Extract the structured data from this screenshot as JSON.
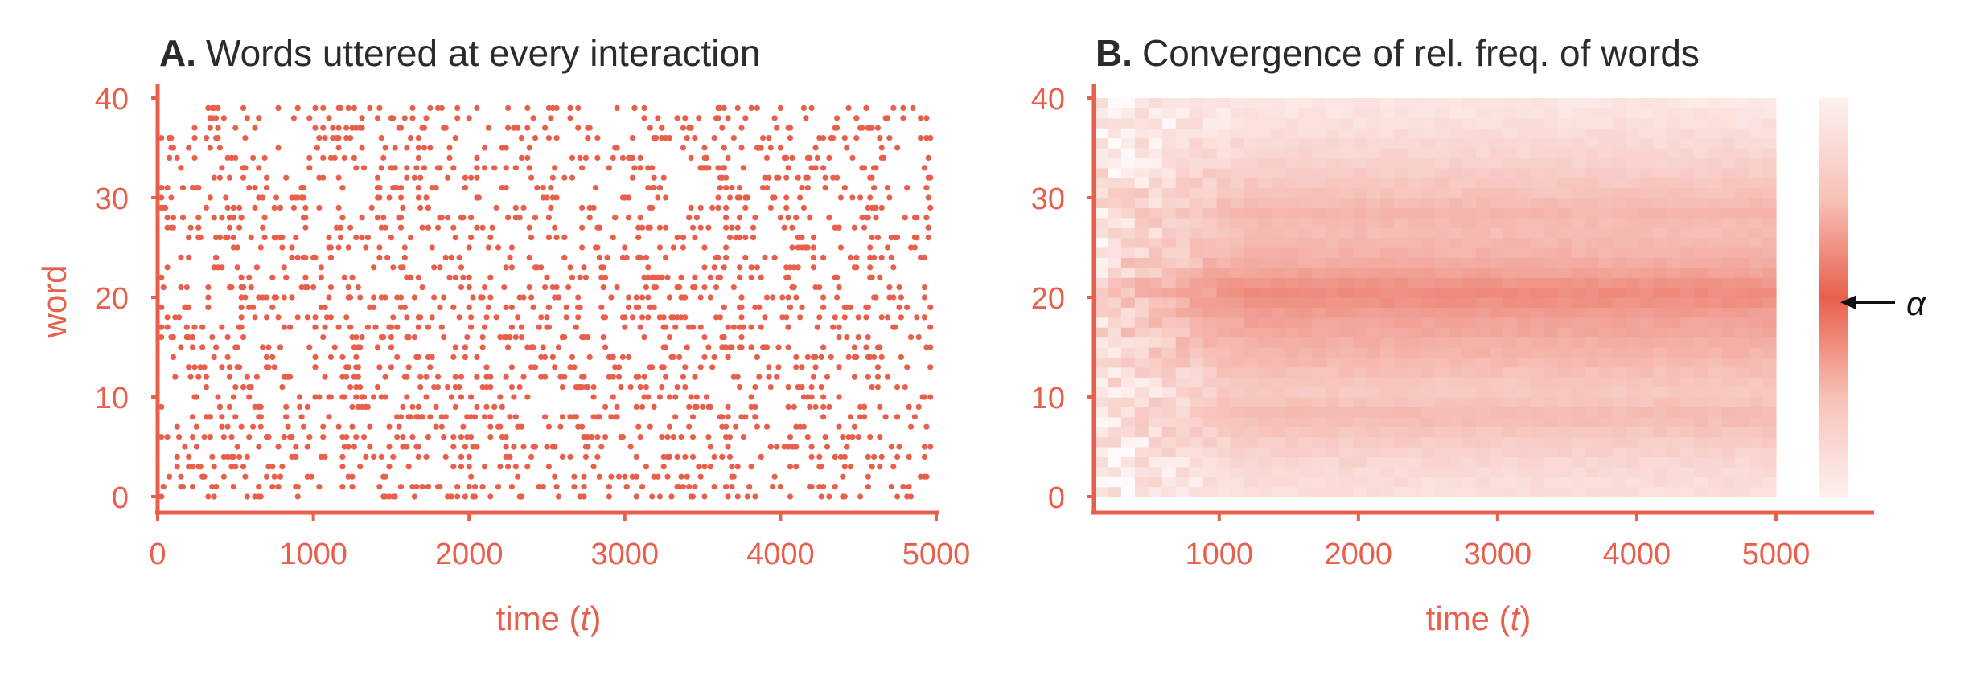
{
  "colors": {
    "accent": "#e8604c",
    "title": "#2b2b2b",
    "annotation": "#111111"
  },
  "chart_data": [
    {
      "type": "scatter",
      "panel_letter": "A.",
      "title": "Words uttered at every interaction",
      "xlabel_prefix": "time (",
      "xlabel_var": "t",
      "xlabel_suffix": ")",
      "ylabel": "word",
      "xlim": [
        0,
        5000
      ],
      "ylim": [
        0,
        40
      ],
      "xticks": [
        0,
        1000,
        2000,
        3000,
        4000,
        5000
      ],
      "yticks": [
        0,
        10,
        20,
        30,
        40
      ],
      "x_range_of_points": [
        25,
        4975
      ],
      "y_range_of_points": [
        0,
        39
      ],
      "approx_point_count": 2000
    },
    {
      "type": "heatmap",
      "panel_letter": "B.",
      "title": "Convergence of rel. freq. of words",
      "xlabel_prefix": "time (",
      "xlabel_var": "t",
      "xlabel_suffix": ")",
      "xlim": [
        100,
        5000
      ],
      "ylim": [
        0,
        40
      ],
      "xticks": [
        1000,
        2000,
        3000,
        4000,
        5000
      ],
      "yticks": [
        0,
        10,
        20,
        30,
        40
      ],
      "rows": 40,
      "time_columns": 50,
      "final_relative_intensity": [
        0.28,
        0.3,
        0.33,
        0.36,
        0.4,
        0.44,
        0.5,
        0.56,
        0.58,
        0.52,
        0.48,
        0.5,
        0.55,
        0.6,
        0.65,
        0.7,
        0.76,
        0.8,
        0.86,
        0.95,
        1.0,
        0.92,
        0.8,
        0.72,
        0.66,
        0.62,
        0.58,
        0.6,
        0.64,
        0.58,
        0.52,
        0.48,
        0.44,
        0.4,
        0.36,
        0.33,
        0.3,
        0.27,
        0.24,
        0.22
      ],
      "colorbar_annotation": "α",
      "colorbar_pointer_row": 19.5
    }
  ]
}
